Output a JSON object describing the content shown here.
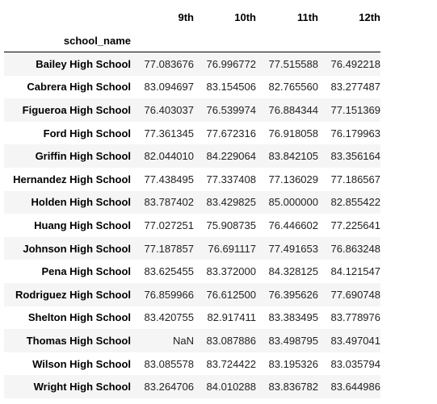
{
  "columns": [
    "9th",
    "10th",
    "11th",
    "12th"
  ],
  "index_name": "school_name",
  "highlight_color": "#ffff00",
  "rows": [
    {
      "school": "Bailey High School",
      "values": [
        "77.083676",
        "76.996772",
        "77.515588",
        "76.492218"
      ]
    },
    {
      "school": "Cabrera High School",
      "values": [
        "83.094697",
        "83.154506",
        "82.765560",
        "83.277487"
      ]
    },
    {
      "school": "Figueroa High School",
      "values": [
        "76.403037",
        "76.539974",
        "76.884344",
        "77.151369"
      ]
    },
    {
      "school": "Ford High School",
      "values": [
        "77.361345",
        "77.672316",
        "76.918058",
        "76.179963"
      ]
    },
    {
      "school": "Griffin High School",
      "values": [
        "82.044010",
        "84.229064",
        "83.842105",
        "83.356164"
      ]
    },
    {
      "school": "Hernandez High School",
      "values": [
        "77.438495",
        "77.337408",
        "77.136029",
        "77.186567"
      ]
    },
    {
      "school": "Holden High School",
      "values": [
        "83.787402",
        "83.429825",
        "85.000000",
        "82.855422"
      ]
    },
    {
      "school": "Huang High School",
      "values": [
        "77.027251",
        "75.908735",
        "76.446602",
        "77.225641"
      ]
    },
    {
      "school": "Johnson High School",
      "values": [
        "77.187857",
        "76.691117",
        "77.491653",
        "76.863248"
      ]
    },
    {
      "school": "Pena High School",
      "values": [
        "83.625455",
        "83.372000",
        "84.328125",
        "84.121547"
      ]
    },
    {
      "school": "Rodriguez High School",
      "values": [
        "76.859966",
        "76.612500",
        "76.395626",
        "77.690748"
      ]
    },
    {
      "school": "Shelton High School",
      "values": [
        "83.420755",
        "82.917411",
        "83.383495",
        "83.778976"
      ]
    },
    {
      "school": "Thomas High School",
      "values": [
        "NaN",
        "83.087886",
        "83.498795",
        "83.497041"
      ]
    },
    {
      "school": "Wilson High School",
      "values": [
        "83.085578",
        "83.724422",
        "83.195326",
        "83.035794"
      ]
    },
    {
      "school": "Wright High School",
      "values": [
        "83.264706",
        "84.010288",
        "83.836782",
        "83.644986"
      ]
    }
  ]
}
